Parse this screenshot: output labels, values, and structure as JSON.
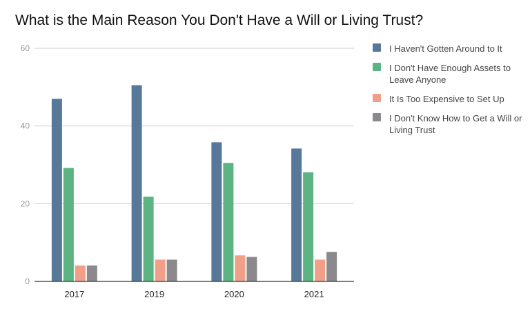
{
  "chart_data": {
    "type": "bar",
    "title": "What is the Main Reason You Don't Have a Will or Living Trust?",
    "categories": [
      "2017",
      "2019",
      "2020",
      "2021"
    ],
    "series": [
      {
        "name": "I Haven't Gotten Around to It",
        "color": "#58789a",
        "values": [
          47,
          50.5,
          35.8,
          34.2
        ]
      },
      {
        "name": "I Don't Have Enough Assets to Leave Anyone",
        "color": "#5cb482",
        "values": [
          29.2,
          21.8,
          30.5,
          28.1
        ]
      },
      {
        "name": "It Is Too Expensive to Set Up",
        "color": "#f09f88",
        "values": [
          4.1,
          5.6,
          6.7,
          5.6
        ]
      },
      {
        "name": "I Don't Know How to Get a Will or Living Trust",
        "color": "#8a8a8e",
        "values": [
          4.1,
          5.6,
          6.3,
          7.6
        ]
      }
    ],
    "y_ticks": [
      "0",
      "20",
      "40",
      "60"
    ],
    "ylim": [
      0,
      60
    ],
    "xlabel": "",
    "ylabel": "",
    "grid": true,
    "legend_position": "right"
  }
}
